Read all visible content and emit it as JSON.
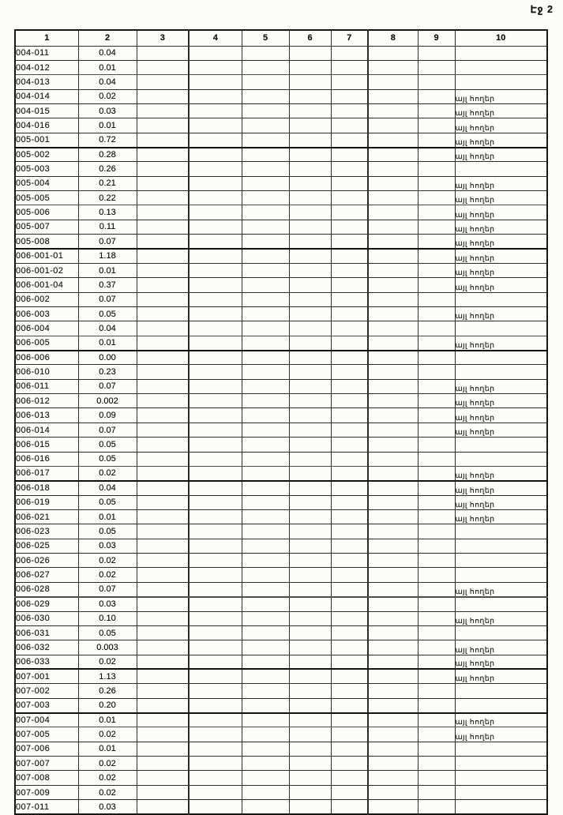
{
  "page": {
    "label": "Էջ 2"
  },
  "table": {
    "headers": [
      "1",
      "2",
      "3",
      "4",
      "5",
      "6",
      "7",
      "8",
      "9",
      "10"
    ],
    "note_text": "այլ հողեր",
    "rows": [
      {
        "code": "004-011",
        "value": "0.04",
        "note": ""
      },
      {
        "code": "004-012",
        "value": "0.01",
        "note": ""
      },
      {
        "code": "004-013",
        "value": "0.04",
        "note": ""
      },
      {
        "code": "004-014",
        "value": "0.02",
        "note": "այլ հողեր"
      },
      {
        "code": "004-015",
        "value": "0.03",
        "note": "այլ հողեր"
      },
      {
        "code": "004-016",
        "value": "0.01",
        "note": "այլ հողեր"
      },
      {
        "code": "005-001",
        "value": "0.72",
        "note": "այլ հողեր"
      },
      {
        "code": "005-002",
        "value": "0.28",
        "note": "այլ հողեր"
      },
      {
        "code": "005-003",
        "value": "0.26",
        "note": ""
      },
      {
        "code": "005-004",
        "value": "0.21",
        "note": "այլ հողեր"
      },
      {
        "code": "005-005",
        "value": "0.22",
        "note": "այլ հողեր"
      },
      {
        "code": "005-006",
        "value": "0.13",
        "note": "այլ հողեր"
      },
      {
        "code": "005-007",
        "value": "0.11",
        "note": "այլ հողեր"
      },
      {
        "code": "005-008",
        "value": "0.07",
        "note": "այլ հողեր"
      },
      {
        "code": "006-001-01",
        "value": "1.18",
        "note": "այլ հողեր"
      },
      {
        "code": "006-001-02",
        "value": "0.01",
        "note": "այլ հողեր"
      },
      {
        "code": "006-001-04",
        "value": "0.37",
        "note": "այլ հողեր"
      },
      {
        "code": "006-002",
        "value": "0.07",
        "note": ""
      },
      {
        "code": "006-003",
        "value": "0.05",
        "note": "այլ հողեր"
      },
      {
        "code": "006-004",
        "value": "0.04",
        "note": ""
      },
      {
        "code": "006-005",
        "value": "0.01",
        "note": "այլ հողեր"
      },
      {
        "code": "006-006",
        "value": "0.00",
        "note": ""
      },
      {
        "code": "006-010",
        "value": "0.23",
        "note": ""
      },
      {
        "code": "006-011",
        "value": "0.07",
        "note": "այլ հողեր"
      },
      {
        "code": "006-012",
        "value": "0.002",
        "note": "այլ հողեր"
      },
      {
        "code": "006-013",
        "value": "0.09",
        "note": "այլ հողեր"
      },
      {
        "code": "006-014",
        "value": "0.07",
        "note": "այլ հողեր"
      },
      {
        "code": "006-015",
        "value": "0.05",
        "note": ""
      },
      {
        "code": "006-016",
        "value": "0.05",
        "note": ""
      },
      {
        "code": "006-017",
        "value": "0.02",
        "note": "այլ հողեր"
      },
      {
        "code": "006-018",
        "value": "0.04",
        "note": "այլ հողեր"
      },
      {
        "code": "006-019",
        "value": "0.05",
        "note": "այլ հողեր"
      },
      {
        "code": "006-021",
        "value": "0.01",
        "note": "այլ հողեր"
      },
      {
        "code": "006-023",
        "value": "0.05",
        "note": ""
      },
      {
        "code": "006-025",
        "value": "0.03",
        "note": ""
      },
      {
        "code": "006-026",
        "value": "0.02",
        "note": ""
      },
      {
        "code": "006-027",
        "value": "0.02",
        "note": ""
      },
      {
        "code": "006-028",
        "value": "0.07",
        "note": "այլ հողեր"
      },
      {
        "code": "006-029",
        "value": "0.03",
        "note": ""
      },
      {
        "code": "006-030",
        "value": "0.10",
        "note": "այլ հողեր"
      },
      {
        "code": "006-031",
        "value": "0.05",
        "note": ""
      },
      {
        "code": "006-032",
        "value": "0.003",
        "note": "այլ հողեր"
      },
      {
        "code": "006-033",
        "value": "0.02",
        "note": "այլ հողեր"
      },
      {
        "code": "007-001",
        "value": "1.13",
        "note": "այլ հողեր"
      },
      {
        "code": "007-002",
        "value": "0.26",
        "note": ""
      },
      {
        "code": "007-003",
        "value": "0.20",
        "note": ""
      },
      {
        "code": "007-004",
        "value": "0.01",
        "note": "այլ հողեր"
      },
      {
        "code": "007-005",
        "value": "0.02",
        "note": "այլ հողեր"
      },
      {
        "code": "007-006",
        "value": "0.01",
        "note": ""
      },
      {
        "code": "007-007",
        "value": "0.02",
        "note": ""
      },
      {
        "code": "007-008",
        "value": "0.02",
        "note": ""
      },
      {
        "code": "007-009",
        "value": "0.02",
        "note": ""
      },
      {
        "code": "007-011",
        "value": "0.03",
        "note": ""
      }
    ]
  }
}
